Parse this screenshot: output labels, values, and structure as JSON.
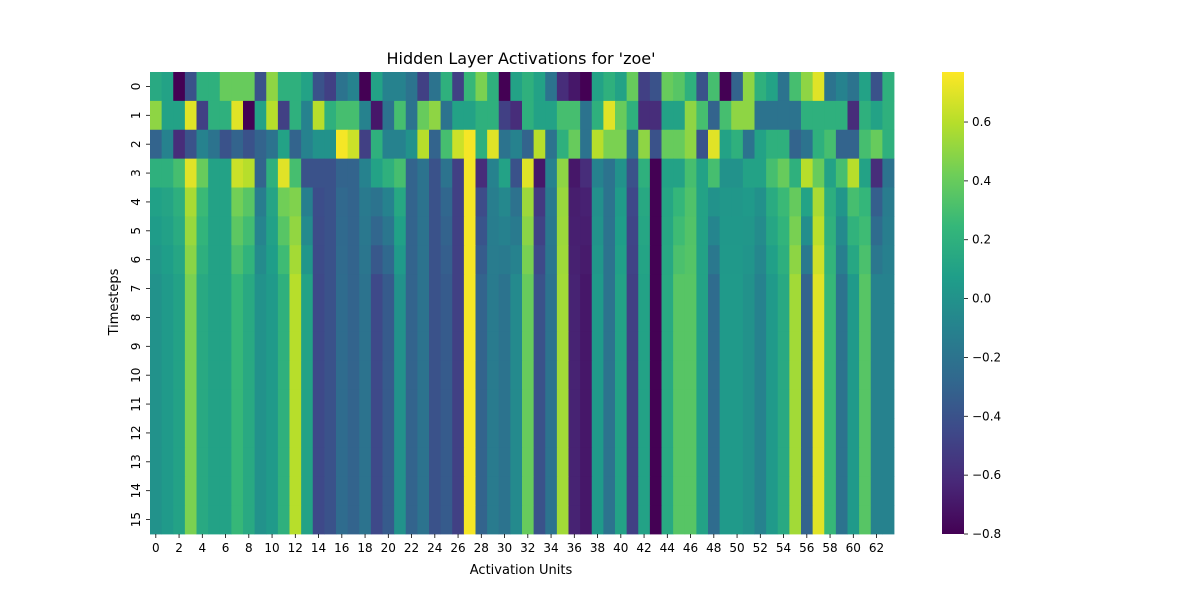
{
  "chart_data": {
    "type": "heatmap",
    "title": "Hidden Layer Activations for 'zoe'",
    "xlabel": "Activation Units",
    "ylabel": "Timesteps",
    "n_cols": 64,
    "n_rows": 16,
    "x_tick_labels": [
      "0",
      "2",
      "4",
      "6",
      "8",
      "10",
      "12",
      "14",
      "16",
      "18",
      "20",
      "22",
      "24",
      "26",
      "28",
      "30",
      "32",
      "34",
      "36",
      "38",
      "40",
      "42",
      "44",
      "46",
      "48",
      "50",
      "52",
      "54",
      "56",
      "58",
      "60",
      "62"
    ],
    "y_tick_labels": [
      "0",
      "1",
      "2",
      "3",
      "4",
      "5",
      "6",
      "7",
      "8",
      "9",
      "10",
      "11",
      "12",
      "13",
      "14",
      "15"
    ],
    "colormap": "viridis",
    "vmin": -0.8,
    "vmax": 0.77,
    "colorbar_ticks": [
      {
        "value": 0.6,
        "label": "0.6"
      },
      {
        "value": 0.4,
        "label": "0.4"
      },
      {
        "value": 0.2,
        "label": "0.2"
      },
      {
        "value": 0.0,
        "label": "0.0"
      },
      {
        "value": -0.2,
        "label": "−0.2"
      },
      {
        "value": -0.4,
        "label": "−0.4"
      },
      {
        "value": -0.6,
        "label": "−0.6"
      },
      {
        "value": -0.8,
        "label": "−0.8"
      }
    ],
    "steady_state": [
      0.0,
      0.05,
      0.1,
      0.45,
      0.15,
      0.1,
      0.1,
      0.25,
      0.15,
      0.0,
      0.05,
      0.2,
      0.6,
      0.1,
      -0.45,
      -0.4,
      -0.25,
      -0.3,
      -0.2,
      -0.45,
      -0.35,
      0.0,
      -0.3,
      -0.2,
      -0.4,
      -0.35,
      -0.5,
      0.75,
      -0.3,
      -0.15,
      -0.2,
      -0.05,
      0.4,
      -0.4,
      -0.2,
      0.55,
      -0.65,
      -0.7,
      0.05,
      -0.2,
      0.1,
      -0.5,
      0.1,
      -0.8,
      0.15,
      0.35,
      0.35,
      0.1,
      -0.25,
      0.05,
      0.05,
      0.0,
      -0.1,
      0.05,
      0.15,
      0.55,
      -0.3,
      0.7,
      0.25,
      -0.2,
      0.05,
      0.35,
      -0.1,
      -0.1
    ],
    "early_rows": [
      [
        0.15,
        0.1,
        -0.8,
        -0.4,
        0.2,
        0.2,
        0.4,
        0.4,
        0.4,
        -0.4,
        0.5,
        0.2,
        0.2,
        0.1,
        -0.4,
        -0.5,
        -0.2,
        -0.1,
        -0.8,
        0.1,
        -0.1,
        -0.1,
        -0.2,
        -0.5,
        -0.2,
        0.2,
        -0.5,
        0.25,
        0.45,
        0.2,
        -0.8,
        0.1,
        0.2,
        0.1,
        -0.2,
        -0.6,
        -0.7,
        -0.8,
        0.1,
        0.2,
        0.1,
        0.4,
        -0.5,
        -0.4,
        0.4,
        0.35,
        0.2,
        -0.4,
        0.3,
        -0.8,
        -0.3,
        0.5,
        0.2,
        0.1,
        -0.2,
        0.3,
        0.5,
        0.7,
        -0.2,
        -0.1,
        -0.2,
        0.1,
        -0.4,
        0.2
      ],
      [
        0.5,
        0.1,
        0.1,
        0.7,
        -0.5,
        0.2,
        0.2,
        0.7,
        -0.8,
        0.1,
        0.6,
        -0.5,
        0.2,
        -0.1,
        0.6,
        0.2,
        0.3,
        0.3,
        -0.1,
        -0.7,
        -0.2,
        0.3,
        -0.2,
        0.4,
        0.5,
        -0.2,
        0.1,
        0.1,
        0.2,
        0.2,
        -0.5,
        -0.6,
        0.2,
        0.1,
        0.1,
        0.3,
        0.3,
        -0.2,
        0.2,
        0.7,
        0.4,
        0.2,
        -0.6,
        -0.6,
        0.1,
        0.1,
        0.5,
        0.3,
        -0.3,
        0.3,
        0.5,
        0.5,
        -0.2,
        -0.2,
        -0.2,
        -0.2,
        0.2,
        0.2,
        0.2,
        0.2,
        -0.6,
        0.2,
        0.1,
        0.2
      ],
      [
        -0.3,
        -0.1,
        -0.6,
        -0.4,
        -0.1,
        -0.2,
        -0.4,
        -0.3,
        -0.4,
        -0.3,
        -0.2,
        0.1,
        -0.3,
        -0.1,
        0.0,
        0.0,
        0.75,
        0.65,
        -0.5,
        0.2,
        -0.1,
        -0.1,
        0.0,
        0.6,
        -0.3,
        0.3,
        0.65,
        0.75,
        0.2,
        0.7,
        -0.2,
        -0.1,
        -0.3,
        0.6,
        -0.2,
        0.2,
        0.4,
        -0.2,
        0.6,
        0.45,
        0.45,
        -0.2,
        0.5,
        -0.4,
        0.4,
        0.4,
        0.5,
        -0.4,
        0.7,
        0.1,
        0.2,
        -0.2,
        0.1,
        0.2,
        0.2,
        -0.3,
        -0.2,
        0.2,
        0.3,
        -0.3,
        -0.3,
        0.3,
        0.4,
        0.2
      ],
      [
        0.2,
        0.2,
        0.3,
        0.7,
        0.4,
        0.1,
        0.1,
        0.65,
        0.6,
        -0.3,
        0.2,
        0.7,
        0.3,
        -0.4,
        -0.4,
        -0.4,
        -0.3,
        -0.3,
        -0.1,
        0.1,
        0.2,
        0.3,
        -0.3,
        -0.2,
        -0.4,
        -0.2,
        -0.5,
        0.75,
        -0.6,
        -0.1,
        0.1,
        -0.4,
        0.7,
        -0.7,
        -0.1,
        0.5,
        -0.7,
        -0.6,
        -0.1,
        -0.2,
        0.0,
        -0.4,
        0.2,
        -0.8,
        0.1,
        0.1,
        0.3,
        0.1,
        0.3,
        0.0,
        0.0,
        0.1,
        0.1,
        0.3,
        0.4,
        0.2,
        0.6,
        0.4,
        0.1,
        0.3,
        0.6,
        0.1,
        -0.6,
        -0.2
      ]
    ]
  }
}
